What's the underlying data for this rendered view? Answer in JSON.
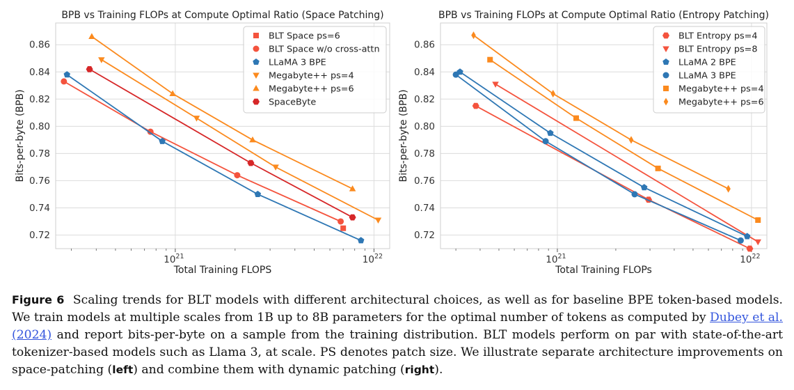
{
  "chart_data": [
    {
      "type": "scatter",
      "title": "BPB vs Training FLOPs at Compute Optimal Ratio (Space Patching)",
      "xlabel": "Total Training FLOPS",
      "ylabel": "Bits-per-byte (BPB)",
      "xscale": "log",
      "xlim": [
        2.5e+20,
        1.2e+22
      ],
      "ylim": [
        0.71,
        0.876
      ],
      "xticks": [
        {
          "value": 1e+21,
          "base": "10",
          "exp": "21"
        },
        {
          "value": 1e+22,
          "base": "10",
          "exp": "22"
        }
      ],
      "yticks": [
        "0.72",
        "0.74",
        "0.76",
        "0.78",
        "0.80",
        "0.82",
        "0.84",
        "0.86"
      ],
      "grid": true,
      "legend_position": "top-right",
      "series": [
        {
          "name": "BLT Space ps=6",
          "color": "#f4533d",
          "marker": "square",
          "line": false,
          "points": [
            [
              7e+21,
              0.725
            ]
          ]
        },
        {
          "name": "BLT Space w/o cross-attn",
          "color": "#f4533d",
          "marker": "circle",
          "line": true,
          "points": [
            [
              2.75e+20,
              0.833
            ],
            [
              7.5e+20,
              0.796
            ],
            [
              2.05e+21,
              0.764
            ],
            [
              6.8e+21,
              0.73
            ]
          ]
        },
        {
          "name": "LLaMA 3 BPE",
          "color": "#2e77b4",
          "marker": "pentagon",
          "line": true,
          "points": [
            [
              2.85e+20,
              0.838
            ],
            [
              8.6e+20,
              0.789
            ],
            [
              2.6e+21,
              0.75
            ],
            [
              8.6e+21,
              0.716
            ]
          ]
        },
        {
          "name": "Megabyte++ ps=4",
          "color": "#fb8a1e",
          "marker": "triangle-down",
          "line": true,
          "points": [
            [
              4.25e+20,
              0.849
            ],
            [
              1.28e+21,
              0.806
            ],
            [
              3.2e+21,
              0.77
            ],
            [
              1.05e+22,
              0.731
            ]
          ]
        },
        {
          "name": "Megabyte++ ps=6",
          "color": "#fb8a1e",
          "marker": "triangle-up",
          "line": true,
          "points": [
            [
              3.8e+20,
              0.866
            ],
            [
              9.7e+20,
              0.824
            ],
            [
              2.45e+21,
              0.79
            ],
            [
              7.8e+21,
              0.754
            ]
          ]
        },
        {
          "name": "SpaceByte",
          "color": "#d62728",
          "marker": "hexagon",
          "line": true,
          "points": [
            [
              3.7e+20,
              0.842
            ],
            [
              2.4e+21,
              0.773
            ],
            [
              7.8e+21,
              0.733
            ]
          ]
        }
      ]
    },
    {
      "type": "scatter",
      "title": "BPB vs Training FLOPs at Compute Optimal Ratio (Entropy Patching)",
      "xlabel": "Total Training FLOPs",
      "ylabel": "Bits-per-byte (BPB)",
      "xscale": "log",
      "xlim": [
        2.5e+20,
        1.2e+22
      ],
      "ylim": [
        0.71,
        0.876
      ],
      "xticks": [
        {
          "value": 1e+21,
          "base": "10",
          "exp": "21"
        },
        {
          "value": 1e+22,
          "base": "10",
          "exp": "22"
        }
      ],
      "yticks": [
        "0.72",
        "0.74",
        "0.76",
        "0.78",
        "0.80",
        "0.82",
        "0.84",
        "0.86"
      ],
      "grid": true,
      "legend_position": "top-right",
      "series": [
        {
          "name": "BLT Entropy ps=4",
          "color": "#f4533d",
          "marker": "hexagon",
          "line": true,
          "points": [
            [
              3.8e+20,
              0.815
            ],
            [
              2.95e+21,
              0.746
            ],
            [
              9.8e+21,
              0.71
            ]
          ]
        },
        {
          "name": "BLT Entropy ps=8",
          "color": "#f4533d",
          "marker": "triangle-down",
          "line": true,
          "points": [
            [
              4.8e+20,
              0.831
            ],
            [
              1.08e+22,
              0.715
            ]
          ]
        },
        {
          "name": "LLaMA 2 BPE",
          "color": "#2e77b4",
          "marker": "pentagon",
          "line": true,
          "points": [
            [
              3.15e+20,
              0.84
            ],
            [
              9.2e+20,
              0.795
            ],
            [
              2.8e+21,
              0.755
            ],
            [
              9.5e+21,
              0.719
            ]
          ]
        },
        {
          "name": "LLaMA 3 BPE",
          "color": "#2e77b4",
          "marker": "circle",
          "line": true,
          "points": [
            [
              3e+20,
              0.838
            ],
            [
              8.7e+20,
              0.789
            ],
            [
              2.5e+21,
              0.75
            ],
            [
              8.8e+21,
              0.716
            ]
          ]
        },
        {
          "name": "Megabyte++ ps=4",
          "color": "#fb8a1e",
          "marker": "square",
          "line": true,
          "points": [
            [
              4.5e+20,
              0.849
            ],
            [
              1.25e+21,
              0.806
            ],
            [
              3.3e+21,
              0.769
            ],
            [
              1.08e+22,
              0.731
            ]
          ]
        },
        {
          "name": "Megabyte++ ps=6",
          "color": "#fb8a1e",
          "marker": "diamond",
          "line": true,
          "points": [
            [
              3.7e+20,
              0.867
            ],
            [
              9.5e+20,
              0.824
            ],
            [
              2.4e+21,
              0.79
            ],
            [
              7.6e+21,
              0.754
            ]
          ]
        }
      ]
    }
  ],
  "caption": {
    "label": "Figure 6",
    "part1": "Scaling trends for BLT models with different architectural choices, as well as for baseline BPE token-based models. We train models at multiple scales from 1B up to 8B parameters for the optimal number of tokens as computed by",
    "citation": "Dubey et al. (2024)",
    "part2": "and report bits-per-byte on a sample from the training distribution. BLT models perform on par with state-of-the-art tokenizer-based models such as Llama 3, at scale. PS denotes patch size. We illustrate separate architecture improvements on space-patching (",
    "left": "left",
    "part3": ") and combine them with dynamic patching (",
    "right": "right",
    "part4": ")."
  }
}
